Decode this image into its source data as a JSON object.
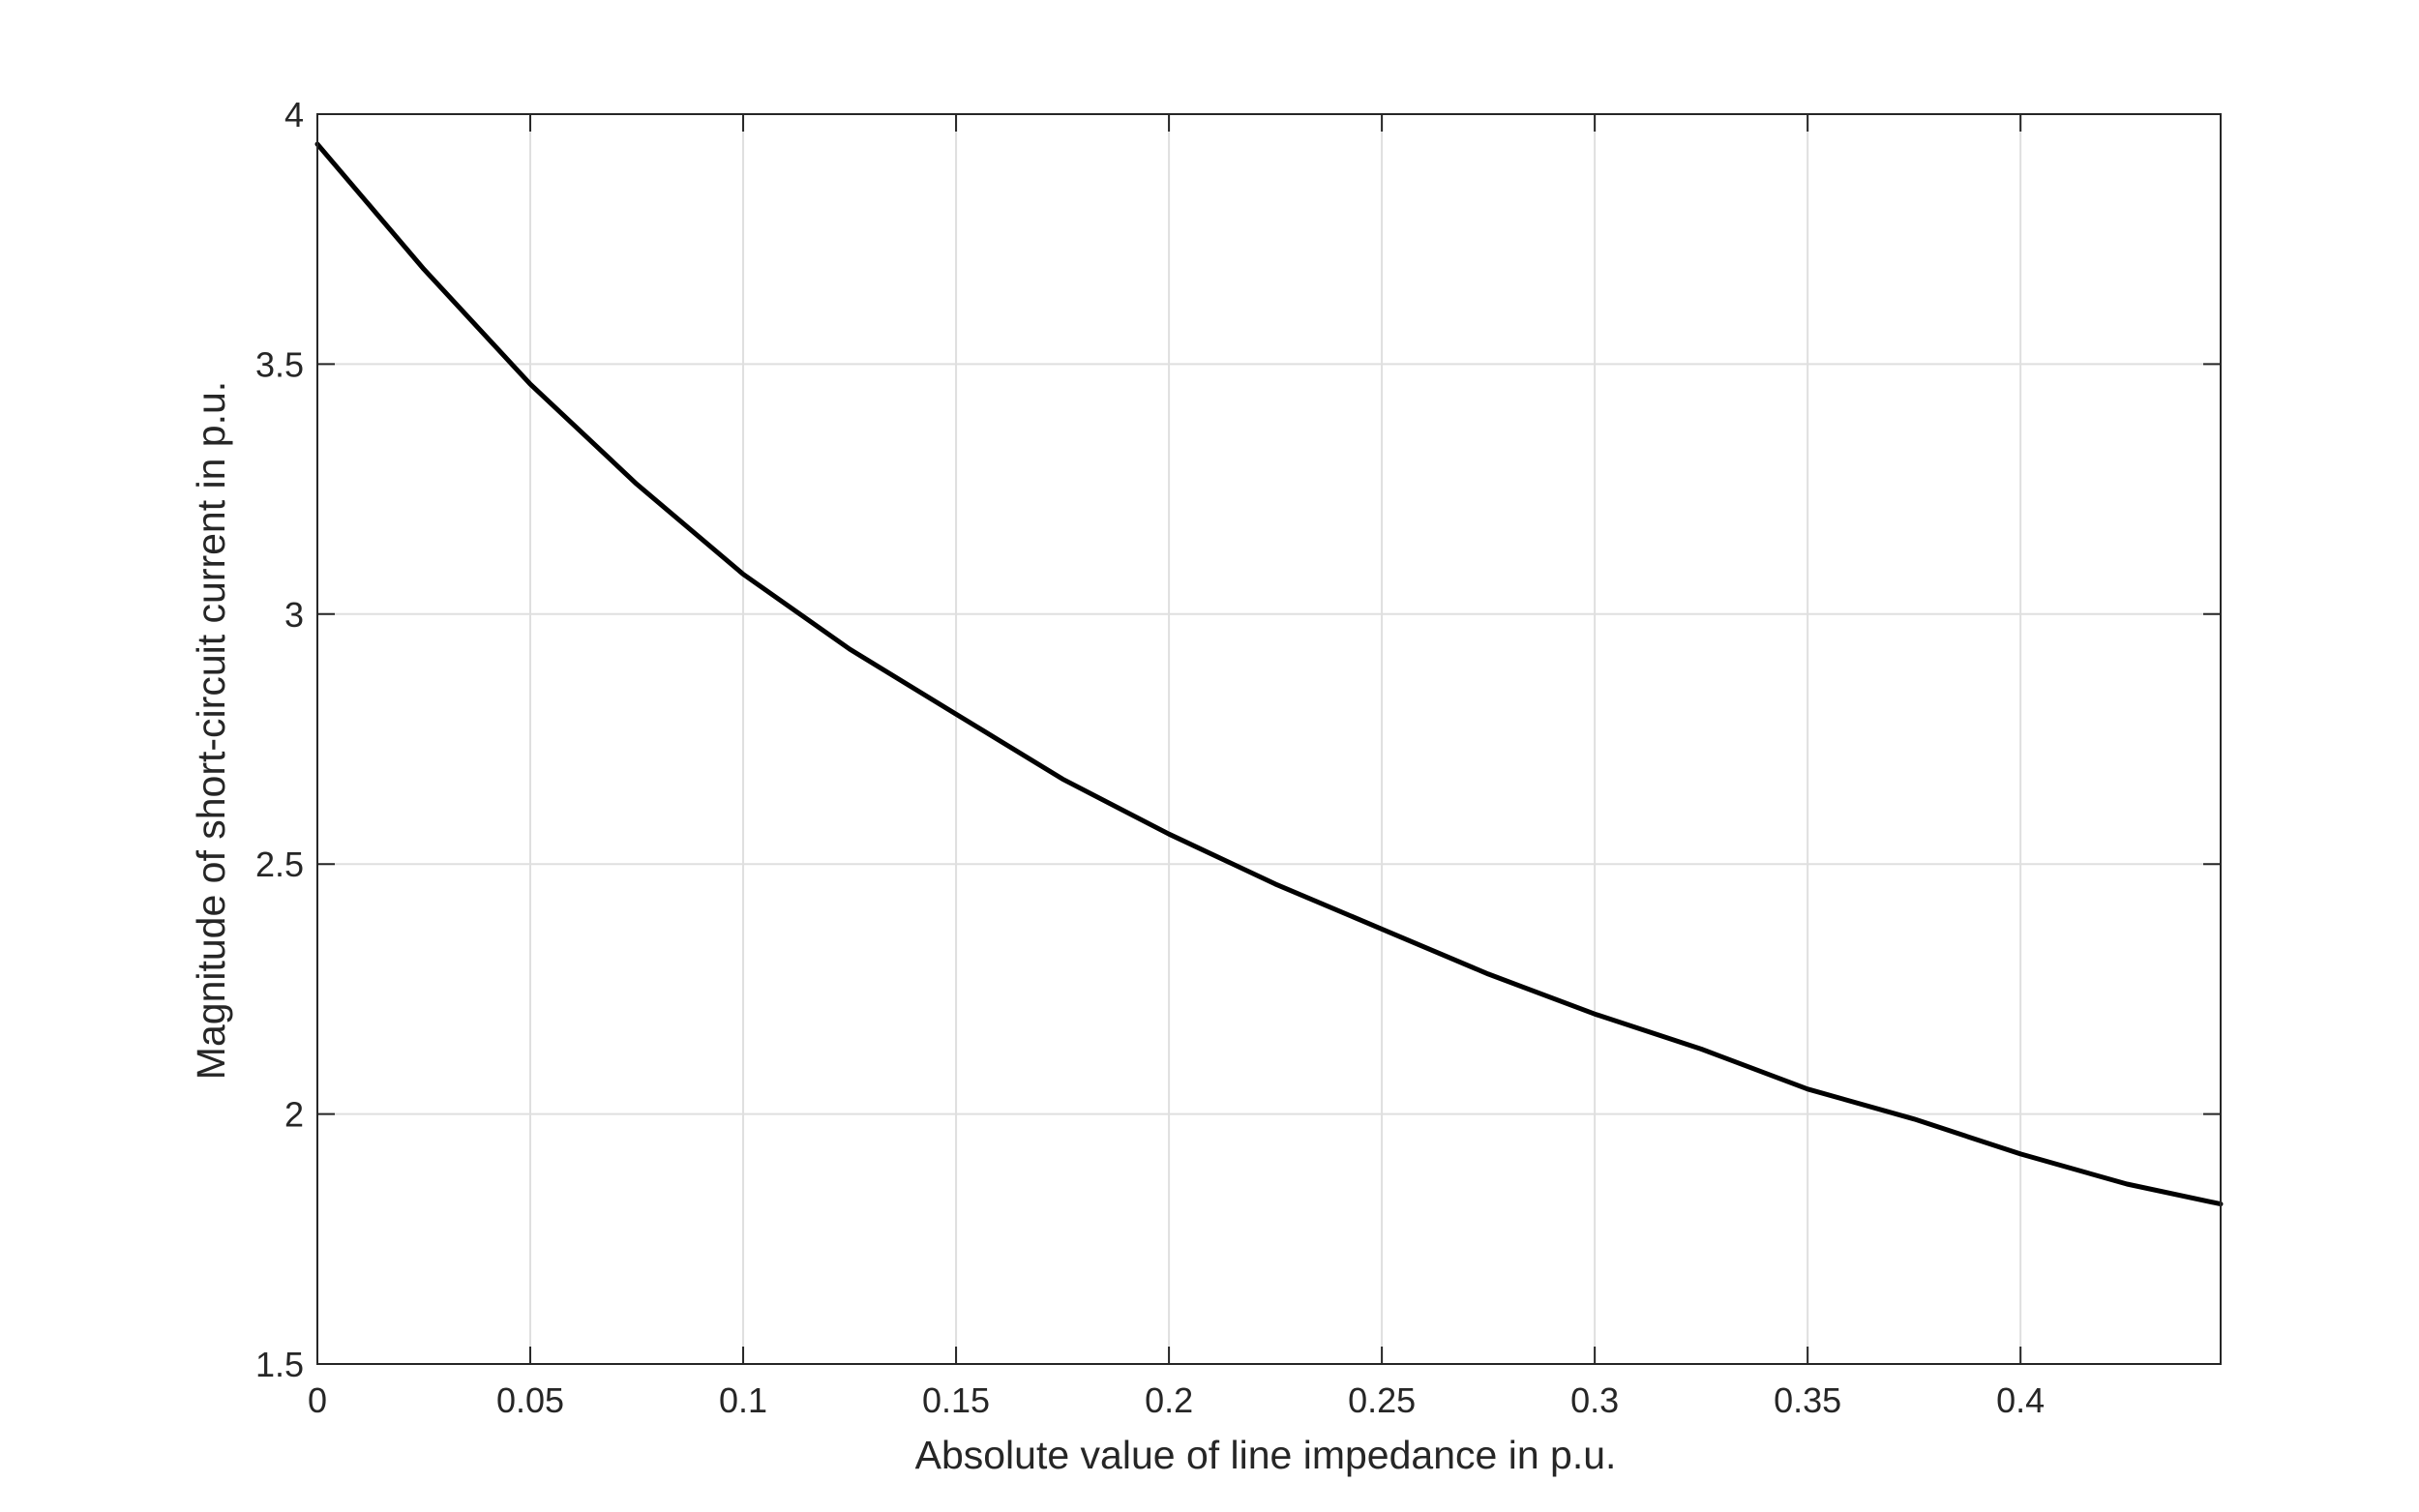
{
  "chart_data": {
    "type": "line",
    "title": "",
    "xlabel": "Absolute value of line impedance in p.u.",
    "ylabel": "Magnitude of short-circuit current in p.u.",
    "xlim": [
      0,
      0.447
    ],
    "ylim": [
      1.5,
      4
    ],
    "x_ticks": [
      0,
      0.05,
      0.1,
      0.15,
      0.2,
      0.25,
      0.3,
      0.35,
      0.4
    ],
    "x_tick_labels": [
      "0",
      "0.05",
      "0.1",
      "0.15",
      "0.2",
      "0.25",
      "0.3",
      "0.35",
      "0.4"
    ],
    "y_ticks": [
      1.5,
      2,
      2.5,
      3,
      3.5,
      4
    ],
    "y_tick_labels": [
      "1.5",
      "2",
      "2.5",
      "3",
      "3.5",
      "4"
    ],
    "grid": true,
    "box": true,
    "legend": "none",
    "colors": {
      "line": "#000000",
      "axes": "#262626",
      "grid": "#dfdfdf"
    },
    "series": [
      {
        "x": [
          0,
          0.025,
          0.05,
          0.075,
          0.1,
          0.125,
          0.15,
          0.175,
          0.2,
          0.225,
          0.25,
          0.275,
          0.3,
          0.325,
          0.35,
          0.375,
          0.4,
          0.425,
          0.447
        ],
        "y": [
          3.94,
          3.69,
          3.46,
          3.26,
          3.08,
          2.93,
          2.8,
          2.67,
          2.56,
          2.46,
          2.37,
          2.28,
          2.2,
          2.13,
          2.05,
          1.99,
          1.92,
          1.86,
          1.82
        ]
      }
    ]
  }
}
